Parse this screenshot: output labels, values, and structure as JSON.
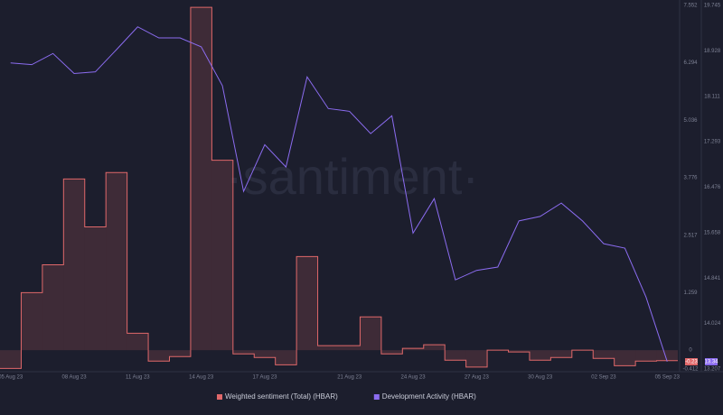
{
  "chart_data": {
    "type": "step-area-line",
    "watermark": "·santiment·",
    "categories": [
      "05 Aug 23",
      null,
      null,
      "08 Aug 23",
      null,
      null,
      "11 Aug 23",
      null,
      null,
      "14 Aug 23",
      null,
      null,
      "17 Aug 23",
      null,
      null,
      null,
      "21 Aug 23",
      null,
      null,
      "24 Aug 23",
      null,
      null,
      "27 Aug 23",
      null,
      null,
      "30 Aug 23",
      null,
      null,
      "02 Sep 23",
      null,
      null,
      "05 Sep 23"
    ],
    "series": [
      {
        "name": "Weighted sentiment (Total) (HBAR)",
        "color": "#e0686a",
        "axis": "y",
        "values": [
          -0.4,
          1.26,
          1.87,
          3.75,
          2.7,
          3.89,
          0.37,
          -0.24,
          -0.14,
          7.51,
          4.16,
          -0.08,
          -0.16,
          -0.32,
          2.05,
          0.1,
          0.1,
          0.73,
          -0.08,
          0.04,
          0.12,
          -0.22,
          -0.37,
          0,
          -0.04,
          -0.22,
          -0.16,
          0,
          -0.18,
          -0.34,
          -0.24,
          -0.23
        ]
      },
      {
        "name": "Development Activity (HBAR)",
        "color": "#8b6cf0",
        "axis": "y2",
        "values": [
          18.71,
          18.68,
          18.88,
          18.52,
          18.55,
          18.95,
          19.36,
          19.16,
          19.16,
          19.0,
          18.3,
          16.4,
          17.24,
          16.84,
          18.46,
          17.89,
          17.84,
          17.44,
          17.76,
          15.65,
          16.27,
          14.81,
          14.98,
          15.04,
          15.87,
          15.95,
          16.19,
          15.87,
          15.46,
          15.38,
          14.5,
          13.34
        ]
      }
    ],
    "ylim": [
      -0.412,
      7.552
    ],
    "yticks": [
      7.552,
      6.294,
      5.036,
      3.776,
      2.517,
      1.259,
      0,
      -0.412
    ],
    "y2lim": [
      13.207,
      19.745
    ],
    "y2ticks": [
      19.745,
      18.928,
      18.111,
      17.293,
      16.476,
      15.658,
      14.841,
      14.024,
      13.207
    ],
    "legend": "bottom"
  }
}
